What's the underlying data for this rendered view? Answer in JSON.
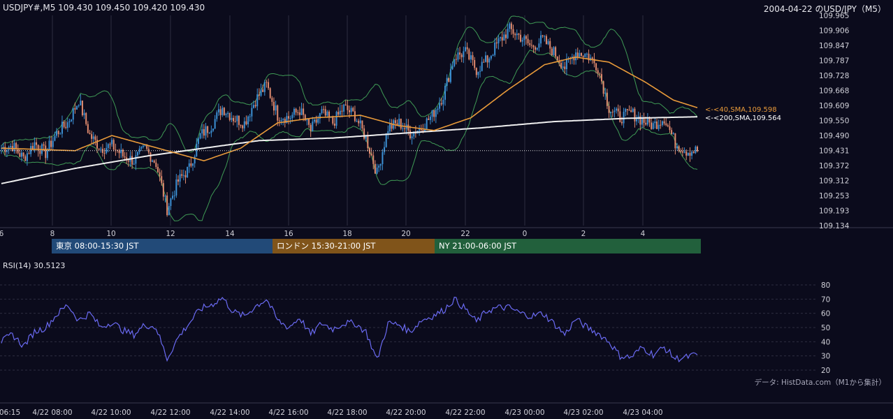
{
  "header": {
    "symbol_info": "USDJPY#,M5 109.430 109.450 109.420 109.430",
    "chart_title": "2004-04-22 のUSD/JPY（M5）"
  },
  "sessions": [
    {
      "label": "東京 08:00-15:30 JST",
      "color": "#224a78"
    },
    {
      "label": "ロンドン 15:30-21:00 JST",
      "color": "#80541a"
    },
    {
      "label": "NY 21:00-06:00 JST",
      "color": "#22603c"
    }
  ],
  "colors": {
    "background": "#0b0b1c",
    "bull_candle": "#3c90d4",
    "bear_candle": "#e08a6e",
    "sma40": "#e89a3a",
    "sma200": "#f0f0f0",
    "bollinger": "#3f9a55",
    "rsi": "#6a6af2",
    "current_price_line": "#e0e0e0"
  },
  "indicators": {
    "sma40_label": "<-<40,SMA,109.598",
    "sma200_label": "<-<200,SMA,109.564",
    "rsi_label": "RSI(14) 30.5123"
  },
  "source_note": "データ: HistData.com（M1から集計）",
  "chart_data": [
    {
      "type": "candlestick",
      "title": "2004-04-22 のUSD/JPY（M5）",
      "y_ticks": [
        "109.965",
        "109.906",
        "109.847",
        "109.787",
        "109.728",
        "109.668",
        "109.609",
        "109.550",
        "109.490",
        "109.431",
        "109.372",
        "109.312",
        "109.253",
        "109.193",
        "109.134"
      ],
      "ylim": [
        109.134,
        109.965
      ],
      "x_ticks": [
        "6",
        "8",
        "10",
        "12",
        "14",
        "16",
        "18",
        "20",
        "22",
        "0",
        "2",
        "4"
      ],
      "current_price": 109.43,
      "series_anchors_price": [
        [
          0,
          109.44
        ],
        [
          6,
          109.45
        ],
        [
          12,
          109.4
        ],
        [
          18,
          109.46
        ],
        [
          24,
          109.42
        ],
        [
          30,
          109.5
        ],
        [
          36,
          109.54
        ],
        [
          42,
          109.63
        ],
        [
          48,
          109.49
        ],
        [
          54,
          109.44
        ],
        [
          60,
          109.45
        ],
        [
          66,
          109.41
        ],
        [
          72,
          109.39
        ],
        [
          78,
          109.44
        ],
        [
          84,
          109.38
        ],
        [
          90,
          109.2
        ],
        [
          96,
          109.31
        ],
        [
          102,
          109.36
        ],
        [
          108,
          109.49
        ],
        [
          114,
          109.53
        ],
        [
          120,
          109.6
        ],
        [
          126,
          109.56
        ],
        [
          132,
          109.54
        ],
        [
          138,
          109.63
        ],
        [
          144,
          109.69
        ],
        [
          150,
          109.57
        ],
        [
          156,
          109.56
        ],
        [
          162,
          109.59
        ],
        [
          168,
          109.51
        ],
        [
          174,
          109.58
        ],
        [
          180,
          109.54
        ],
        [
          186,
          109.6
        ],
        [
          192,
          109.57
        ],
        [
          198,
          109.48
        ],
        [
          204,
          109.34
        ],
        [
          210,
          109.52
        ],
        [
          216,
          109.54
        ],
        [
          222,
          109.5
        ],
        [
          228,
          109.52
        ],
        [
          234,
          109.57
        ],
        [
          240,
          109.65
        ],
        [
          246,
          109.8
        ],
        [
          252,
          109.82
        ],
        [
          258,
          109.75
        ],
        [
          264,
          109.79
        ],
        [
          270,
          109.86
        ],
        [
          276,
          109.91
        ],
        [
          282,
          109.88
        ],
        [
          288,
          109.84
        ],
        [
          294,
          109.87
        ],
        [
          300,
          109.82
        ],
        [
          306,
          109.76
        ],
        [
          312,
          109.82
        ],
        [
          318,
          109.81
        ],
        [
          324,
          109.76
        ],
        [
          330,
          109.6
        ],
        [
          336,
          109.56
        ],
        [
          342,
          109.58
        ],
        [
          348,
          109.55
        ],
        [
          354,
          109.53
        ],
        [
          360,
          109.56
        ],
        [
          366,
          109.46
        ],
        [
          372,
          109.43
        ],
        [
          378,
          109.43
        ]
      ],
      "series_anchors_sma40": [
        [
          0,
          109.44
        ],
        [
          40,
          109.43
        ],
        [
          60,
          109.49
        ],
        [
          90,
          109.43
        ],
        [
          110,
          109.39
        ],
        [
          130,
          109.44
        ],
        [
          150,
          109.54
        ],
        [
          170,
          109.56
        ],
        [
          195,
          109.57
        ],
        [
          215,
          109.53
        ],
        [
          235,
          109.51
        ],
        [
          255,
          109.56
        ],
        [
          275,
          109.67
        ],
        [
          295,
          109.77
        ],
        [
          312,
          109.8
        ],
        [
          330,
          109.78
        ],
        [
          350,
          109.7
        ],
        [
          365,
          109.63
        ],
        [
          378,
          109.6
        ]
      ],
      "series_anchors_sma200": [
        [
          0,
          109.3
        ],
        [
          40,
          109.36
        ],
        [
          80,
          109.41
        ],
        [
          110,
          109.44
        ],
        [
          140,
          109.47
        ],
        [
          180,
          109.48
        ],
        [
          220,
          109.5
        ],
        [
          260,
          109.52
        ],
        [
          300,
          109.545
        ],
        [
          340,
          109.558
        ],
        [
          378,
          109.564
        ]
      ]
    },
    {
      "type": "line",
      "title": "RSI(14) 30.5123",
      "y_ticks": [
        "80",
        "70",
        "60",
        "50",
        "40",
        "30",
        "20"
      ],
      "ylim": [
        20,
        80
      ],
      "anchors": [
        [
          0,
          40
        ],
        [
          6,
          45
        ],
        [
          12,
          37
        ],
        [
          18,
          47
        ],
        [
          24,
          50
        ],
        [
          30,
          59
        ],
        [
          36,
          66
        ],
        [
          42,
          55
        ],
        [
          48,
          60
        ],
        [
          54,
          50
        ],
        [
          60,
          54
        ],
        [
          66,
          48
        ],
        [
          72,
          45
        ],
        [
          78,
          52
        ],
        [
          84,
          50
        ],
        [
          90,
          28
        ],
        [
          96,
          43
        ],
        [
          102,
          53
        ],
        [
          108,
          63
        ],
        [
          114,
          66
        ],
        [
          120,
          71
        ],
        [
          126,
          61
        ],
        [
          132,
          58
        ],
        [
          138,
          65
        ],
        [
          144,
          70
        ],
        [
          150,
          55
        ],
        [
          156,
          50
        ],
        [
          162,
          57
        ],
        [
          168,
          45
        ],
        [
          174,
          53
        ],
        [
          180,
          49
        ],
        [
          186,
          53
        ],
        [
          192,
          53
        ],
        [
          198,
          47
        ],
        [
          204,
          27
        ],
        [
          210,
          53
        ],
        [
          216,
          52
        ],
        [
          222,
          47
        ],
        [
          228,
          55
        ],
        [
          234,
          58
        ],
        [
          240,
          62
        ],
        [
          246,
          70
        ],
        [
          252,
          63
        ],
        [
          258,
          54
        ],
        [
          264,
          62
        ],
        [
          270,
          64
        ],
        [
          276,
          64
        ],
        [
          282,
          60
        ],
        [
          288,
          58
        ],
        [
          294,
          60
        ],
        [
          300,
          53
        ],
        [
          306,
          45
        ],
        [
          312,
          56
        ],
        [
          318,
          50
        ],
        [
          324,
          46
        ],
        [
          330,
          40
        ],
        [
          336,
          30
        ],
        [
          342,
          29
        ],
        [
          348,
          36
        ],
        [
          354,
          31
        ],
        [
          360,
          36
        ],
        [
          366,
          28
        ],
        [
          372,
          29
        ],
        [
          378,
          31
        ]
      ]
    }
  ],
  "time_axis": [
    "06:15",
    "4/22 08:00",
    "4/22 10:00",
    "4/22 12:00",
    "4/22 14:00",
    "4/22 16:00",
    "4/22 18:00",
    "4/22 20:00",
    "4/22 22:00",
    "4/23 00:00",
    "4/23 02:00",
    "4/23 04:00"
  ]
}
